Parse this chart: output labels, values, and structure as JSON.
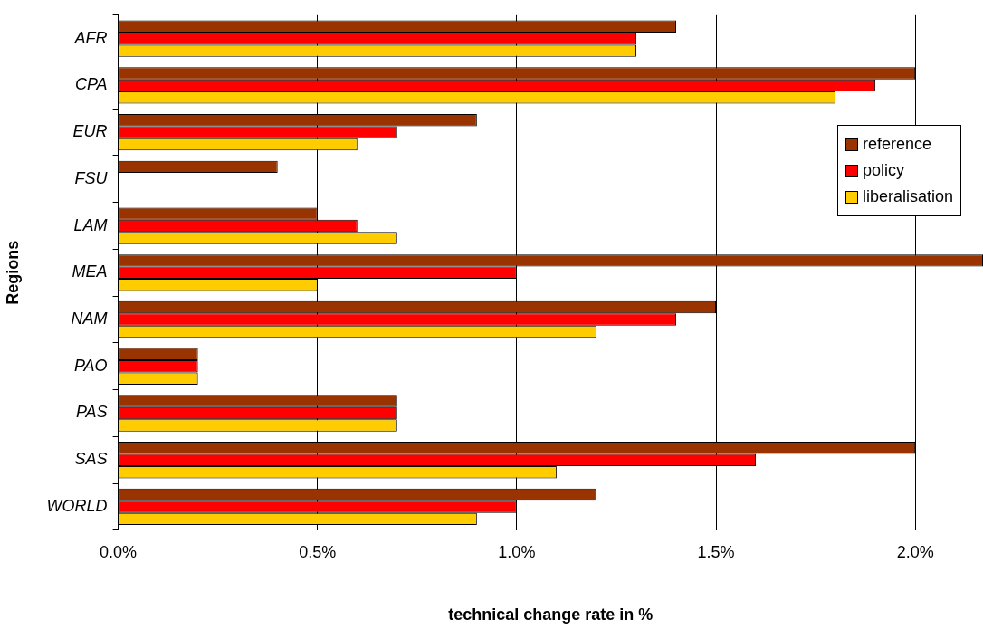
{
  "chart_data": {
    "type": "bar",
    "orientation": "horizontal",
    "xlabel": "technical change rate in %",
    "ylabel": "Regions",
    "categories": [
      "AFR",
      "CPA",
      "EUR",
      "FSU",
      "LAM",
      "MEA",
      "NAM",
      "PAO",
      "PAS",
      "SAS",
      "WORLD"
    ],
    "series": [
      {
        "name": "reference",
        "color": "#993300",
        "values": [
          1.4,
          2.0,
          0.9,
          0.4,
          0.5,
          2.17,
          1.5,
          0.2,
          0.7,
          2.0,
          1.2
        ]
      },
      {
        "name": "policy",
        "color": "#ff0000",
        "values": [
          1.3,
          1.9,
          0.7,
          null,
          0.6,
          1.0,
          1.4,
          0.2,
          0.7,
          1.6,
          1.0
        ]
      },
      {
        "name": "liberalisation",
        "color": "#ffcc00",
        "values": [
          1.3,
          1.8,
          0.6,
          null,
          0.7,
          0.5,
          1.2,
          0.2,
          0.7,
          1.1,
          0.9
        ]
      }
    ],
    "xlim": [
      0,
      2.17
    ],
    "xticks": [
      {
        "value": 0,
        "label": "0.0%"
      },
      {
        "value": 0.5,
        "label": "0.5%"
      },
      {
        "value": 1.0,
        "label": "1.0%"
      },
      {
        "value": 1.5,
        "label": "1.5%"
      },
      {
        "value": 2.0,
        "label": "2.0%"
      }
    ],
    "grid": "x",
    "legend": "top right"
  }
}
